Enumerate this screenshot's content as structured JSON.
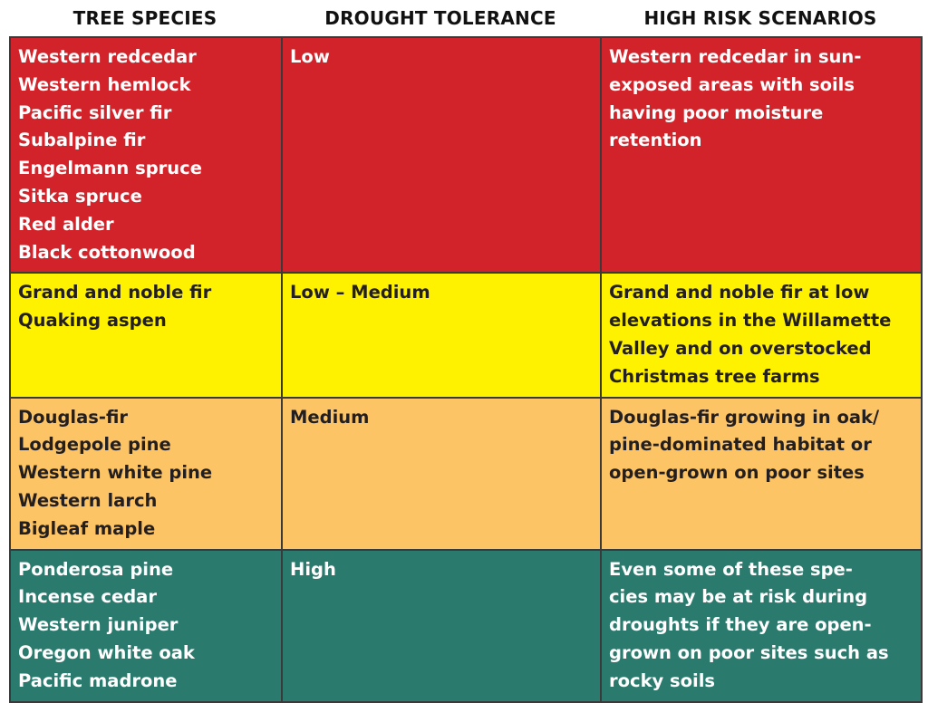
{
  "headers": {
    "species": "TREE SPECIES",
    "tolerance": "DROUGHT  TOLERANCE",
    "risk": "HIGH RISK SCENARIOS"
  },
  "rows": [
    {
      "species": [
        "Western redcedar",
        "Western hemlock",
        "Pacific silver fir",
        "Subalpine fir",
        "Engelmann spruce",
        "Sitka spruce",
        "Red alder",
        "Black cottonwood"
      ],
      "tolerance": "Low",
      "risk": [
        "Western redcedar in sun-",
        "exposed areas with soils",
        "having poor moisture",
        "retention"
      ],
      "color": "#d2232a"
    },
    {
      "species": [
        "Grand and noble fir",
        "Quaking aspen"
      ],
      "tolerance": "Low – Medium",
      "risk": [
        "Grand and noble fir at low",
        "elevations in the Willamette",
        "Valley and on overstocked",
        "Christmas tree farms"
      ],
      "color": "#fff200"
    },
    {
      "species": [
        "Douglas-fir",
        "Lodgepole pine",
        "Western white pine",
        "Western larch",
        "Bigleaf maple"
      ],
      "tolerance": "Medium",
      "risk": [
        "Douglas-fir growing in oak/",
        "pine-dominated habitat or",
        "open-grown on poor sites"
      ],
      "color": "#fdc466"
    },
    {
      "species": [
        "Ponderosa pine",
        "Incense cedar",
        "Western juniper",
        "Oregon white oak",
        "Pacific madrone"
      ],
      "tolerance": "High",
      "risk": [
        "Even some of these spe-",
        "cies may be at risk during",
        "droughts if they are open-",
        "grown on poor sites such as",
        "rocky soils"
      ],
      "color": "#2a7a6e"
    }
  ]
}
